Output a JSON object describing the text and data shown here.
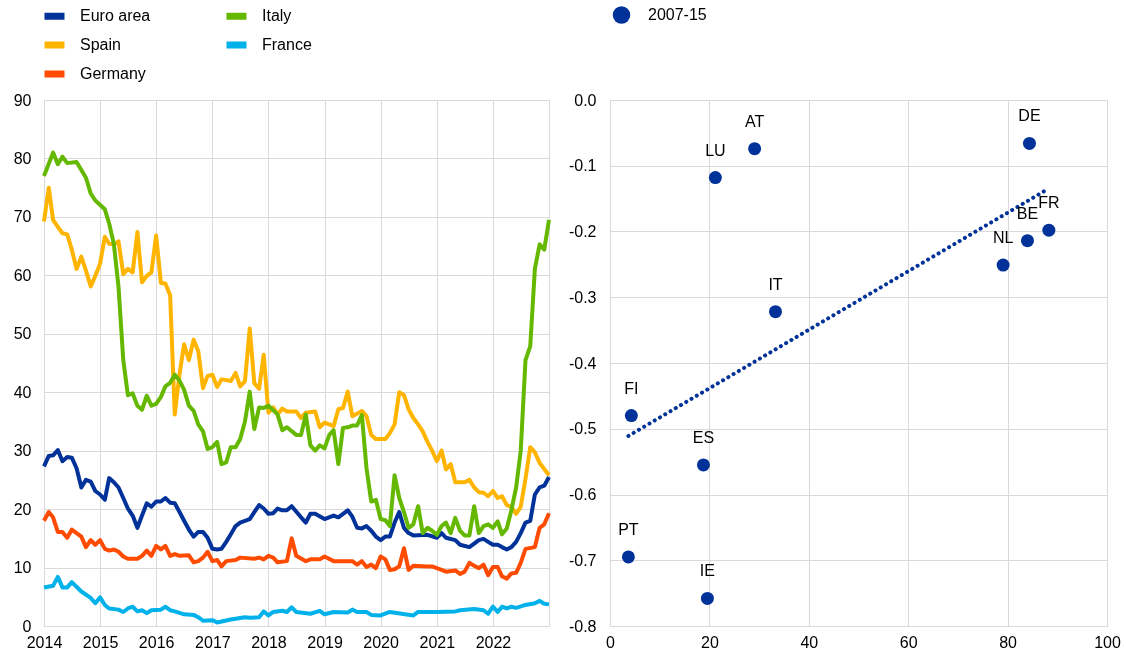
{
  "chart_data": [
    {
      "type": "line",
      "xlim": [
        "2014-01",
        "2023-01"
      ],
      "xticks": [
        "2014",
        "2015",
        "2016",
        "2017",
        "2018",
        "2019",
        "2020",
        "2021",
        "2022"
      ],
      "ylim": [
        0,
        90
      ],
      "yticks": [
        0,
        10,
        20,
        30,
        40,
        50,
        60,
        70,
        80,
        90
      ],
      "grid": true,
      "legend": "top left",
      "series": [
        {
          "name": "Euro area",
          "color": "#003299",
          "x": [
            "2014-01",
            "2014-02",
            "2014-03",
            "2014-04",
            "2014-05",
            "2014-06",
            "2014-07",
            "2014-08",
            "2014-09",
            "2014-10",
            "2014-11",
            "2014-12",
            "2015-01",
            "2015-02",
            "2015-03",
            "2015-04",
            "2015-05",
            "2015-06",
            "2015-07",
            "2015-08",
            "2015-09",
            "2015-10",
            "2015-11",
            "2015-12",
            "2016-01",
            "2016-02",
            "2016-03",
            "2016-04",
            "2016-05",
            "2016-06",
            "2016-07",
            "2016-08",
            "2016-09",
            "2016-10",
            "2016-11",
            "2016-12",
            "2017-01",
            "2017-02",
            "2017-03",
            "2017-04",
            "2017-05",
            "2017-06",
            "2017-07",
            "2017-08",
            "2017-09",
            "2017-10",
            "2017-11",
            "2017-12",
            "2018-01",
            "2018-02",
            "2018-03",
            "2018-04",
            "2018-05",
            "2018-06",
            "2018-08",
            "2018-09",
            "2018-10",
            "2018-11",
            "2019-01",
            "2019-03",
            "2019-04",
            "2019-06",
            "2019-07",
            "2019-08",
            "2019-09",
            "2019-10",
            "2019-11",
            "2019-12",
            "2020-01",
            "2020-02",
            "2020-03",
            "2020-04",
            "2020-05",
            "2020-06",
            "2020-07",
            "2020-08",
            "2020-11",
            "2021-01",
            "2021-02",
            "2021-03",
            "2021-05",
            "2021-06",
            "2021-08",
            "2021-09",
            "2021-10",
            "2021-11",
            "2021-12",
            "2022-01",
            "2022-02",
            "2022-03",
            "2022-04",
            "2022-05",
            "2022-06",
            "2022-07",
            "2022-08",
            "2022-09",
            "2022-10",
            "2022-11",
            "2022-12",
            "2023-01"
          ],
          "values": [
            27.3,
            29.1,
            29.2,
            30.1,
            28.2,
            28.9,
            28.8,
            27,
            23.7,
            25,
            24.7,
            23.1,
            22.5,
            21.6,
            25.3,
            24.6,
            23.7,
            21.9,
            20.1,
            18.9,
            16.8,
            18.9,
            21,
            20.4,
            21.3,
            21.3,
            21.9,
            21.1,
            21,
            19.5,
            18,
            16.5,
            15.3,
            16.1,
            16.1,
            15.1,
            13.2,
            13.1,
            13.2,
            14.4,
            15.7,
            17.1,
            17.7,
            18,
            18.3,
            19.5,
            20.7,
            20.1,
            19.2,
            19.3,
            20.1,
            19.8,
            19.8,
            20.5,
            18.6,
            17.7,
            19.2,
            19.2,
            18.3,
            18.9,
            18.6,
            19.8,
            18.7,
            16.8,
            16.7,
            17.1,
            16.3,
            15.3,
            14.7,
            15.3,
            15.3,
            17.7,
            19.5,
            16.8,
            15.9,
            15.5,
            15.6,
            15.1,
            15.9,
            15.1,
            14.7,
            13.9,
            13.5,
            14.1,
            14.7,
            14.9,
            14.4,
            13.9,
            13.9,
            13.5,
            13.1,
            13.5,
            14.4,
            15.9,
            17.7,
            18,
            22.5,
            23.7,
            24,
            25.5
          ]
        },
        {
          "name": "Spain",
          "color": "#ffb400",
          "x": [
            "2014-01",
            "2014-02",
            "2014-03",
            "2014-04",
            "2014-05",
            "2014-06",
            "2014-07",
            "2014-08",
            "2014-09",
            "2014-10",
            "2014-11",
            "2014-12",
            "2015-01",
            "2015-02",
            "2015-03",
            "2015-04",
            "2015-05",
            "2015-06",
            "2015-07",
            "2015-08",
            "2015-09",
            "2015-10",
            "2015-11",
            "2015-12",
            "2016-01",
            "2016-02",
            "2016-03",
            "2016-04",
            "2016-05",
            "2016-06",
            "2016-07",
            "2016-08",
            "2016-09",
            "2016-10",
            "2016-11",
            "2016-12",
            "2017-01",
            "2017-02",
            "2017-03",
            "2017-04",
            "2017-05",
            "2017-06",
            "2017-07",
            "2017-08",
            "2017-09",
            "2017-10",
            "2017-11",
            "2017-12",
            "2018-01",
            "2018-02",
            "2018-03",
            "2018-04",
            "2018-05",
            "2018-07",
            "2018-08",
            "2018-09",
            "2018-11",
            "2018-12",
            "2019-01",
            "2019-03",
            "2019-04",
            "2019-05",
            "2019-06",
            "2019-07",
            "2019-09",
            "2019-10",
            "2019-11",
            "2019-12",
            "2020-02",
            "2020-03",
            "2020-04",
            "2020-05",
            "2020-06",
            "2020-07",
            "2020-08",
            "2020-09",
            "2020-10",
            "2020-11",
            "2020-12",
            "2021-01",
            "2021-02",
            "2021-03",
            "2021-04",
            "2021-05",
            "2021-07",
            "2021-08",
            "2021-09",
            "2021-10",
            "2021-11",
            "2021-12",
            "2022-01",
            "2022-02",
            "2022-03",
            "2022-04",
            "2022-05",
            "2022-06",
            "2022-07",
            "2022-08",
            "2022-09",
            "2022-10",
            "2022-11",
            "2023-01"
          ],
          "values": [
            69.2,
            75,
            69.5,
            68.3,
            67.2,
            67,
            64.4,
            61.1,
            63.2,
            60.8,
            58.1,
            59.9,
            62,
            66.6,
            65.4,
            65.3,
            65.8,
            60.2,
            61.1,
            60.5,
            67.4,
            58.8,
            59.9,
            60.5,
            66.8,
            58.7,
            58.6,
            56.6,
            36.2,
            43.1,
            48.2,
            45.5,
            49,
            47,
            40.7,
            42.8,
            43,
            40.9,
            42.2,
            42.1,
            41.9,
            43.3,
            41,
            41.9,
            50.9,
            41.5,
            40.6,
            46.4,
            36.5,
            37.4,
            36.2,
            37.2,
            36.7,
            36.7,
            35.6,
            36.5,
            36.7,
            34,
            34.8,
            34.2,
            37.1,
            37.3,
            40.1,
            35.9,
            36.8,
            35.9,
            32.7,
            32,
            32,
            33,
            34.5,
            40,
            39.5,
            37.1,
            35.6,
            34.5,
            33.3,
            31.5,
            30,
            28.2,
            30,
            26.8,
            27.7,
            24.6,
            24.6,
            25,
            23.7,
            22.9,
            22.8,
            22.2,
            23.1,
            21.9,
            22.2,
            20.7,
            20.4,
            19.2,
            20.4,
            25.2,
            30.6,
            29.7,
            27.9,
            25.8
          ]
        },
        {
          "name": "Germany",
          "color": "#ff4b00",
          "x": [
            "2014-01",
            "2014-02",
            "2014-03",
            "2014-04",
            "2014-05",
            "2014-06",
            "2014-07",
            "2014-08",
            "2014-09",
            "2014-10",
            "2014-11",
            "2014-12",
            "2015-01",
            "2015-02",
            "2015-03",
            "2015-04",
            "2015-05",
            "2015-06",
            "2015-07",
            "2015-09",
            "2015-10",
            "2015-11",
            "2015-12",
            "2016-01",
            "2016-02",
            "2016-03",
            "2016-04",
            "2016-05",
            "2016-06",
            "2016-08",
            "2016-09",
            "2016-10",
            "2016-11",
            "2016-12",
            "2017-01",
            "2017-02",
            "2017-03",
            "2017-04",
            "2017-06",
            "2017-07",
            "2017-10",
            "2017-11",
            "2017-12",
            "2018-01",
            "2018-02",
            "2018-03",
            "2018-05",
            "2018-06",
            "2018-07",
            "2018-09",
            "2018-10",
            "2018-12",
            "2019-01",
            "2019-03",
            "2019-04",
            "2019-07",
            "2019-08",
            "2019-09",
            "2019-10",
            "2019-11",
            "2019-12",
            "2020-01",
            "2020-02",
            "2020-03",
            "2020-04",
            "2020-05",
            "2020-06",
            "2020-07",
            "2020-08",
            "2020-11",
            "2020-12",
            "2021-02",
            "2021-03",
            "2021-05",
            "2021-06",
            "2021-07",
            "2021-08",
            "2021-09",
            "2021-10",
            "2021-11",
            "2021-12",
            "2022-01",
            "2022-02",
            "2022-03",
            "2022-04",
            "2022-05",
            "2022-06",
            "2022-07",
            "2022-08",
            "2022-10",
            "2022-11",
            "2022-12",
            "2023-01"
          ],
          "values": [
            18,
            19.5,
            18.6,
            16.1,
            16.1,
            15.1,
            16.5,
            15.9,
            15.3,
            13.5,
            14.7,
            13.9,
            14.7,
            13.2,
            12.9,
            13.1,
            12.7,
            11.9,
            11.5,
            11.5,
            12,
            12.9,
            12,
            13.7,
            13.1,
            13.7,
            12,
            12.3,
            12,
            12.1,
            10.9,
            11.1,
            11.7,
            12.7,
            11.1,
            11.3,
            10.2,
            11.1,
            11.3,
            11.7,
            11.5,
            11.7,
            11.4,
            12,
            11.7,
            10.9,
            11.1,
            15,
            12,
            11.1,
            11.4,
            11.4,
            11.9,
            11.1,
            11.1,
            11.1,
            10.5,
            11.1,
            10.1,
            10.5,
            9.9,
            11.9,
            11.4,
            9.6,
            9.7,
            10.2,
            13.3,
            9.6,
            10.3,
            10.2,
            10.2,
            9.6,
            9.3,
            9.5,
            8.9,
            9.3,
            10.8,
            10.3,
            9.9,
            10.5,
            8.7,
            10.1,
            10.1,
            8.5,
            8.1,
            9,
            9.1,
            10.8,
            13.2,
            13.5,
            16.8,
            17.4,
            19.3
          ]
        },
        {
          "name": "Italy",
          "color": "#65b800",
          "x": [
            "2014-01",
            "2014-03",
            "2014-04",
            "2014-05",
            "2014-06",
            "2014-08",
            "2014-10",
            "2014-11",
            "2014-12",
            "2015-02",
            "2015-03",
            "2015-04",
            "2015-05",
            "2015-06",
            "2015-07",
            "2015-08",
            "2015-09",
            "2015-10",
            "2015-11",
            "2015-12",
            "2016-01",
            "2016-02",
            "2016-03",
            "2016-04",
            "2016-05",
            "2016-06",
            "2016-07",
            "2016-08",
            "2016-09",
            "2016-10",
            "2016-11",
            "2016-12",
            "2017-01",
            "2017-02",
            "2017-03",
            "2017-04",
            "2017-05",
            "2017-06",
            "2017-07",
            "2017-08",
            "2017-09",
            "2017-10",
            "2017-11",
            "2017-12",
            "2018-01",
            "2018-03",
            "2018-04",
            "2018-05",
            "2018-07",
            "2018-08",
            "2018-09",
            "2018-10",
            "2018-11",
            "2018-12",
            "2019-01",
            "2019-02",
            "2019-03",
            "2019-04",
            "2019-05",
            "2019-06",
            "2019-07",
            "2019-08",
            "2019-09",
            "2019-10",
            "2019-11",
            "2019-12",
            "2020-01",
            "2020-02",
            "2020-03",
            "2020-04",
            "2020-05",
            "2020-06",
            "2020-07",
            "2020-08",
            "2020-09",
            "2020-10",
            "2020-11",
            "2020-12",
            "2021-01",
            "2021-02",
            "2021-03",
            "2021-04",
            "2021-05",
            "2021-06",
            "2021-07",
            "2021-08",
            "2021-09",
            "2021-10",
            "2021-11",
            "2021-12",
            "2022-01",
            "2022-02",
            "2022-03",
            "2022-04",
            "2022-05",
            "2022-06",
            "2022-07",
            "2022-08",
            "2022-09",
            "2022-10",
            "2022-11",
            "2022-12",
            "2023-01"
          ],
          "values": [
            77,
            81,
            79,
            80.3,
            79.2,
            79.4,
            76.7,
            74,
            72.8,
            71.3,
            68.9,
            65.3,
            58,
            45.5,
            39.5,
            39.8,
            37.7,
            37,
            39.4,
            37.7,
            38,
            39.2,
            41,
            41.6,
            43,
            42,
            40.4,
            37.7,
            36.8,
            34.5,
            33.3,
            30.3,
            30.6,
            31.5,
            27.7,
            28,
            30.6,
            30.6,
            32,
            35,
            40.1,
            33.7,
            37.4,
            37.3,
            37.7,
            36.2,
            33.5,
            34,
            32.7,
            32.7,
            36.2,
            30.9,
            30,
            30.9,
            30.4,
            32.7,
            33.5,
            27.7,
            33.9,
            34,
            34.3,
            34.3,
            36.1,
            27,
            21.3,
            21.6,
            18.3,
            18.1,
            17.1,
            25.8,
            21.9,
            19.5,
            16.8,
            17.4,
            20.5,
            15.9,
            16.8,
            16.3,
            15.6,
            17.1,
            17.7,
            15.9,
            18.5,
            16.3,
            15.5,
            15.5,
            20.5,
            15.9,
            17.1,
            17.4,
            16.8,
            17.9,
            15.7,
            16.7,
            19.8,
            23.7,
            30,
            45.5,
            47.9,
            61.1,
            65.3,
            64.4,
            69.5
          ]
        },
        {
          "name": "France",
          "color": "#00b1ea",
          "x": [
            "2014-01",
            "2014-03",
            "2014-04",
            "2014-05",
            "2014-06",
            "2014-07",
            "2014-09",
            "2014-11",
            "2014-12",
            "2015-01",
            "2015-02",
            "2015-03",
            "2015-05",
            "2015-06",
            "2015-07",
            "2015-08",
            "2015-09",
            "2015-10",
            "2015-11",
            "2015-12",
            "2016-02",
            "2016-03",
            "2016-04",
            "2016-05",
            "2016-07",
            "2016-09",
            "2016-10",
            "2016-11",
            "2017-01",
            "2017-02",
            "2017-05",
            "2017-08",
            "2017-09",
            "2017-11",
            "2017-12",
            "2018-01",
            "2018-02",
            "2018-04",
            "2018-05",
            "2018-06",
            "2018-07",
            "2018-10",
            "2018-12",
            "2019-01",
            "2019-03",
            "2019-06",
            "2019-07",
            "2019-08",
            "2019-10",
            "2019-11",
            "2020-01",
            "2020-03",
            "2020-08",
            "2020-09",
            "2021-01",
            "2021-05",
            "2021-06",
            "2021-09",
            "2021-11",
            "2021-12",
            "2022-01",
            "2022-02",
            "2022-03",
            "2022-04",
            "2022-05",
            "2022-06",
            "2022-08",
            "2022-10",
            "2022-11",
            "2022-12",
            "2023-01"
          ],
          "values": [
            6.6,
            6.9,
            8.4,
            6.6,
            6.6,
            7.5,
            5.9,
            4.8,
            3.9,
            4.9,
            3.6,
            3,
            2.8,
            2.4,
            3,
            3.3,
            2.5,
            2.7,
            2.2,
            2.7,
            2.8,
            3.3,
            2.7,
            2.5,
            2,
            1.9,
            1.5,
            0.9,
            1,
            0.6,
            1.1,
            1.5,
            1.4,
            1.5,
            2.5,
            1.8,
            2.4,
            2.6,
            2.4,
            3.2,
            2.4,
            2.1,
            2.6,
            2,
            2.4,
            2.3,
            2.8,
            2.4,
            2.4,
            1.9,
            1.8,
            2.4,
            1.8,
            2.4,
            2.4,
            2.5,
            2.7,
            2.9,
            2.7,
            2.1,
            3.3,
            2.4,
            3.3,
            3,
            3.3,
            3.1,
            3.6,
            3.9,
            4.3,
            3.8,
            3.7
          ]
        }
      ]
    },
    {
      "type": "scatter",
      "xlim": [
        0,
        100
      ],
      "xticks": [
        0,
        20,
        40,
        60,
        80,
        100
      ],
      "ylim": [
        -0.8,
        0
      ],
      "yticks": [
        {
          "value": 0,
          "label": "0.0"
        },
        -0.1,
        -0.2,
        -0.3,
        -0.4,
        -0.5,
        -0.6,
        -0.7,
        -0.8
      ],
      "grid": true,
      "legend": "top left",
      "marker": "circle",
      "series": [
        {
          "name": "2007-15",
          "color": "#003299",
          "x": [
            21.2,
            29.1,
            84.4,
            88.3,
            84.0,
            79.1,
            33.3,
            4.3,
            18.8,
            3.7,
            19.6
          ],
          "values": [
            -0.118,
            -0.074,
            -0.066,
            -0.198,
            -0.214,
            -0.251,
            -0.322,
            -0.48,
            -0.555,
            -0.695,
            -0.758
          ]
        },
        {
          "type": "line",
          "color": "#003299",
          "line_style": "dotted",
          "marker": "none",
          "x": [
            3.7,
            87.3
          ],
          "values": [
            -0.511,
            -0.139
          ]
        }
      ],
      "annotations": [
        {
          "text": "LU",
          "x": 21.2,
          "y": -0.118
        },
        {
          "text": "AT",
          "x": 29.1,
          "y": -0.074
        },
        {
          "text": "DE",
          "x": 84.4,
          "y": -0.066
        },
        {
          "text": "FR",
          "x": 88.3,
          "y": -0.198
        },
        {
          "text": "BE",
          "x": 84.0,
          "y": -0.214
        },
        {
          "text": "NL",
          "x": 79.1,
          "y": -0.251
        },
        {
          "text": "IT",
          "x": 33.3,
          "y": -0.322
        },
        {
          "text": "FI",
          "x": 4.3,
          "y": -0.48
        },
        {
          "text": "ES",
          "x": 18.8,
          "y": -0.555
        },
        {
          "text": "PT",
          "x": 3.7,
          "y": -0.695
        },
        {
          "text": "IE",
          "x": 19.6,
          "y": -0.758
        }
      ]
    }
  ]
}
